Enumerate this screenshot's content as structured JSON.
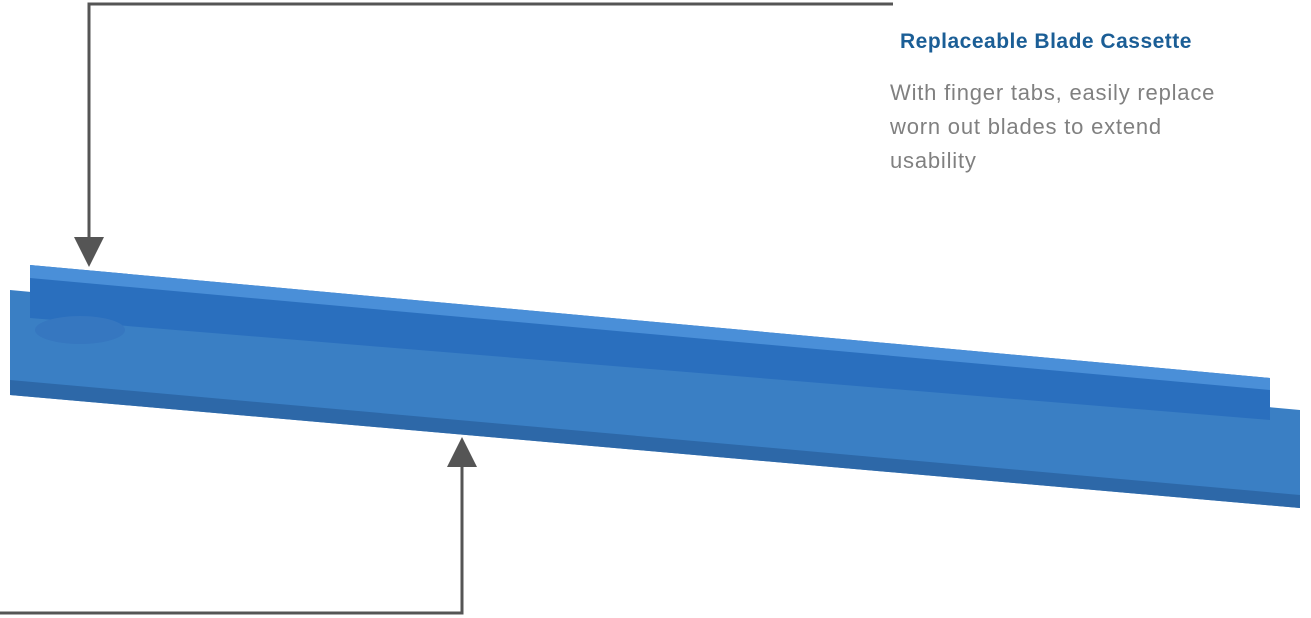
{
  "callout": {
    "title": "Replaceable Blade Cassette",
    "text": [
      "With finger tabs, easily replace",
      "worn out blades to extend",
      "usability"
    ]
  }
}
